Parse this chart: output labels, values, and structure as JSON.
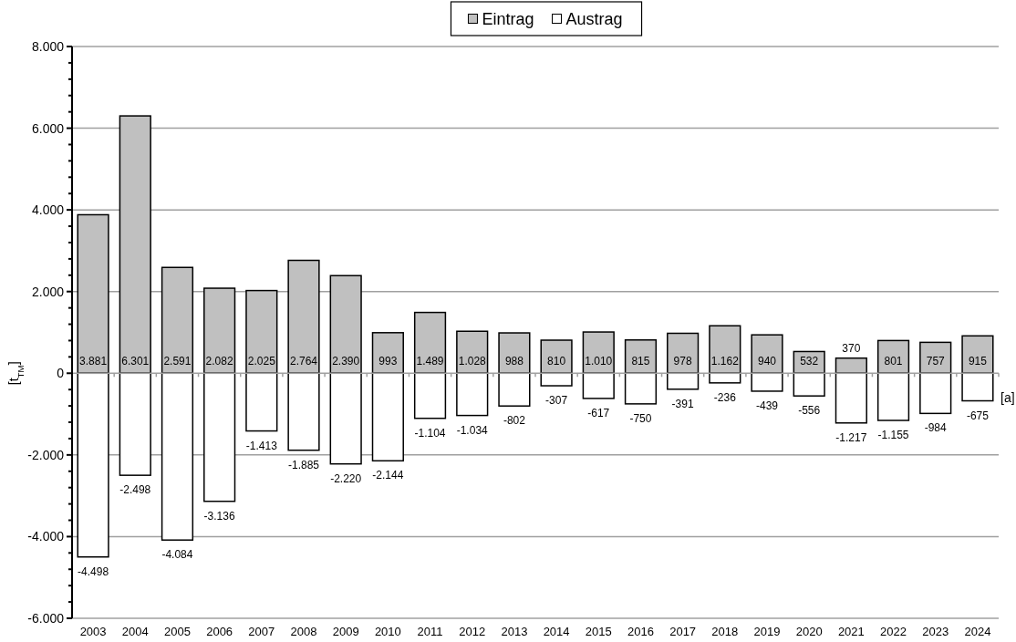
{
  "chart_data": {
    "type": "bar",
    "stacked": true,
    "categories": [
      "2003",
      "2004",
      "2005",
      "2006",
      "2007",
      "2008",
      "2009",
      "2010",
      "2011",
      "2012",
      "2013",
      "2014",
      "2015",
      "2016",
      "2017",
      "2018",
      "2019",
      "2020",
      "2021",
      "2022",
      "2023",
      "2024"
    ],
    "series": [
      {
        "name": "Eintrag",
        "color": "#c0c0c0",
        "values": [
          3881,
          6301,
          2591,
          2082,
          2025,
          2764,
          2390,
          993,
          1489,
          1028,
          988,
          810,
          1010,
          815,
          978,
          1162,
          940,
          532,
          370,
          801,
          757,
          915
        ],
        "value_labels": [
          "3.881",
          "6.301",
          "2.591",
          "2.082",
          "2.025",
          "2.764",
          "2.390",
          "993",
          "1.489",
          "1.028",
          "988",
          "810",
          "1.010",
          "815",
          "978",
          "1.162",
          "940",
          "532",
          "370",
          "801",
          "757",
          "915"
        ]
      },
      {
        "name": "Austrag",
        "color": "#ffffff",
        "values": [
          -4498,
          -2498,
          -4084,
          -3136,
          -1413,
          -1885,
          -2220,
          -2144,
          -1104,
          -1034,
          -802,
          -307,
          -617,
          -750,
          -391,
          -236,
          -439,
          -556,
          -1217,
          -1155,
          -984,
          -675
        ],
        "value_labels": [
          "-4.498",
          "-2.498",
          "-4.084",
          "-3.136",
          "-1.413",
          "-1.885",
          "-2.220",
          "-2.144",
          "-1.104",
          "-1.034",
          "-802",
          "-307",
          "-617",
          "-750",
          "-391",
          "-236",
          "-439",
          "-556",
          "-1.217",
          "-1.155",
          "-984",
          "-675"
        ]
      }
    ],
    "ylabel": "[t$_{TM}$]",
    "xlabel": "[a]",
    "ylim": [
      -6000,
      8000
    ],
    "yticks": [
      {
        "value": -6000,
        "label": "-6.000"
      },
      {
        "value": -5600,
        "label": null
      },
      {
        "value": -5200,
        "label": null
      },
      {
        "value": -4800,
        "label": null
      },
      {
        "value": -4400,
        "label": null
      },
      {
        "value": -4000,
        "label": "-4.000"
      },
      {
        "value": -3600,
        "label": null
      },
      {
        "value": -3200,
        "label": null
      },
      {
        "value": -2800,
        "label": null
      },
      {
        "value": -2400,
        "label": null
      },
      {
        "value": -2000,
        "label": "-2.000"
      },
      {
        "value": -1600,
        "label": null
      },
      {
        "value": -1200,
        "label": null
      },
      {
        "value": -800,
        "label": null
      },
      {
        "value": -400,
        "label": null
      },
      0,
      {
        "value": 400,
        "label": null
      },
      {
        "value": 800,
        "label": null
      },
      {
        "value": 1200,
        "label": null
      },
      {
        "value": 1600,
        "label": null
      },
      {
        "value": 2000,
        "label": "2.000"
      },
      {
        "value": 2400,
        "label": null
      },
      {
        "value": 2800,
        "label": null
      },
      {
        "value": 3200,
        "label": null
      },
      {
        "value": 3600,
        "label": null
      },
      {
        "value": 4000,
        "label": "4.000"
      },
      {
        "value": 4400,
        "label": null
      },
      {
        "value": 4800,
        "label": null
      },
      {
        "value": 5200,
        "label": null
      },
      {
        "value": 5600,
        "label": null
      },
      {
        "value": 6000,
        "label": "6.000"
      },
      {
        "value": 6400,
        "label": null
      },
      {
        "value": 6800,
        "label": null
      },
      {
        "value": 7200,
        "label": null
      },
      {
        "value": 7600,
        "label": null
      },
      {
        "value": 8000,
        "label": "8.000"
      }
    ],
    "grid": "y",
    "legend": "top"
  }
}
